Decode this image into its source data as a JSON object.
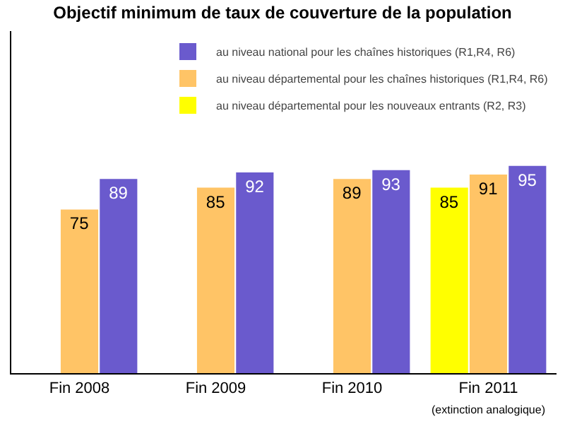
{
  "chart_data": {
    "type": "bar",
    "title": "Objectif minimum de taux de couverture de la population",
    "categories": [
      "Fin 2008",
      "Fin 2009",
      "Fin 2010",
      "Fin 2011 (extinction analogique)"
    ],
    "series": [
      {
        "name": "au niveau départemental pour les nouveaux entrants (R2, R3)",
        "color": "#ffff00",
        "values": [
          null,
          null,
          null,
          85
        ]
      },
      {
        "name": "au niveau départemental pour les chaînes historiques (R1,R4, R6)",
        "color": "#ffc466",
        "values": [
          75,
          85,
          89,
          91
        ]
      },
      {
        "name": "au niveau national pour les chaînes historiques (R1,R4, R6)",
        "color": "#6a5acd",
        "values": [
          89,
          92,
          93,
          95
        ]
      }
    ],
    "data_labels": true,
    "grid": false,
    "legend": "top right"
  }
}
